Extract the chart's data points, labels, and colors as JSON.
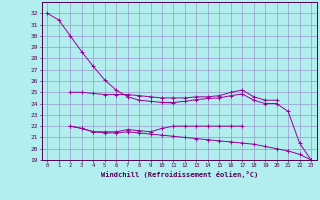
{
  "xlabel": "Windchill (Refroidissement éolien,°C)",
  "bg_color": "#b2eeee",
  "grid_color": "#9999cc",
  "line_color": "#990099",
  "x_ticks": [
    0,
    1,
    2,
    3,
    4,
    5,
    6,
    7,
    8,
    9,
    10,
    11,
    12,
    13,
    14,
    15,
    16,
    17,
    18,
    19,
    20,
    21,
    22,
    23
  ],
  "ylim": [
    19,
    33
  ],
  "yticks": [
    19,
    20,
    21,
    22,
    23,
    24,
    25,
    26,
    27,
    28,
    29,
    30,
    31,
    32
  ],
  "line1_x": [
    0,
    1,
    2,
    3,
    4,
    5,
    6,
    7,
    8,
    9,
    10,
    11
  ],
  "line1_y": [
    32,
    31.4,
    30.0,
    28.6,
    27.3,
    26.1,
    25.2,
    24.6,
    24.3,
    24.2,
    24.1,
    24.05
  ],
  "line2_x": [
    2,
    3,
    4,
    5,
    6,
    7,
    8,
    9,
    10,
    11,
    12,
    13,
    14,
    15,
    16,
    17,
    18,
    19,
    20
  ],
  "line2_y": [
    25.0,
    25.0,
    24.9,
    24.8,
    24.8,
    24.8,
    24.7,
    24.6,
    24.5,
    24.5,
    24.5,
    24.6,
    24.6,
    24.7,
    25.0,
    25.2,
    24.6,
    24.3,
    24.3
  ],
  "line3_x": [
    10,
    11,
    12,
    13,
    14,
    15,
    16,
    17,
    18,
    19,
    20,
    21,
    22,
    23
  ],
  "line3_y": [
    24.1,
    24.1,
    24.2,
    24.35,
    24.45,
    24.5,
    24.7,
    24.85,
    24.3,
    24.0,
    24.0,
    23.3,
    20.5,
    19.0
  ],
  "line4_x": [
    2,
    3,
    4,
    5,
    6,
    7,
    8,
    9,
    10,
    11,
    12,
    13,
    14,
    15,
    16,
    17
  ],
  "line4_y": [
    22.0,
    21.8,
    21.5,
    21.5,
    21.5,
    21.7,
    21.6,
    21.5,
    21.8,
    22.0,
    22.0,
    22.0,
    22.0,
    22.0,
    22.0,
    22.0
  ],
  "line5_x": [
    2,
    3,
    4,
    5,
    6,
    7,
    8,
    9,
    10,
    11,
    12,
    13,
    14,
    15,
    16,
    17,
    18,
    19,
    20,
    21,
    22,
    23
  ],
  "line5_y": [
    22.0,
    21.8,
    21.5,
    21.4,
    21.4,
    21.5,
    21.4,
    21.3,
    21.2,
    21.1,
    21.0,
    20.9,
    20.8,
    20.7,
    20.6,
    20.5,
    20.4,
    20.2,
    20.0,
    19.8,
    19.5,
    19.0
  ]
}
